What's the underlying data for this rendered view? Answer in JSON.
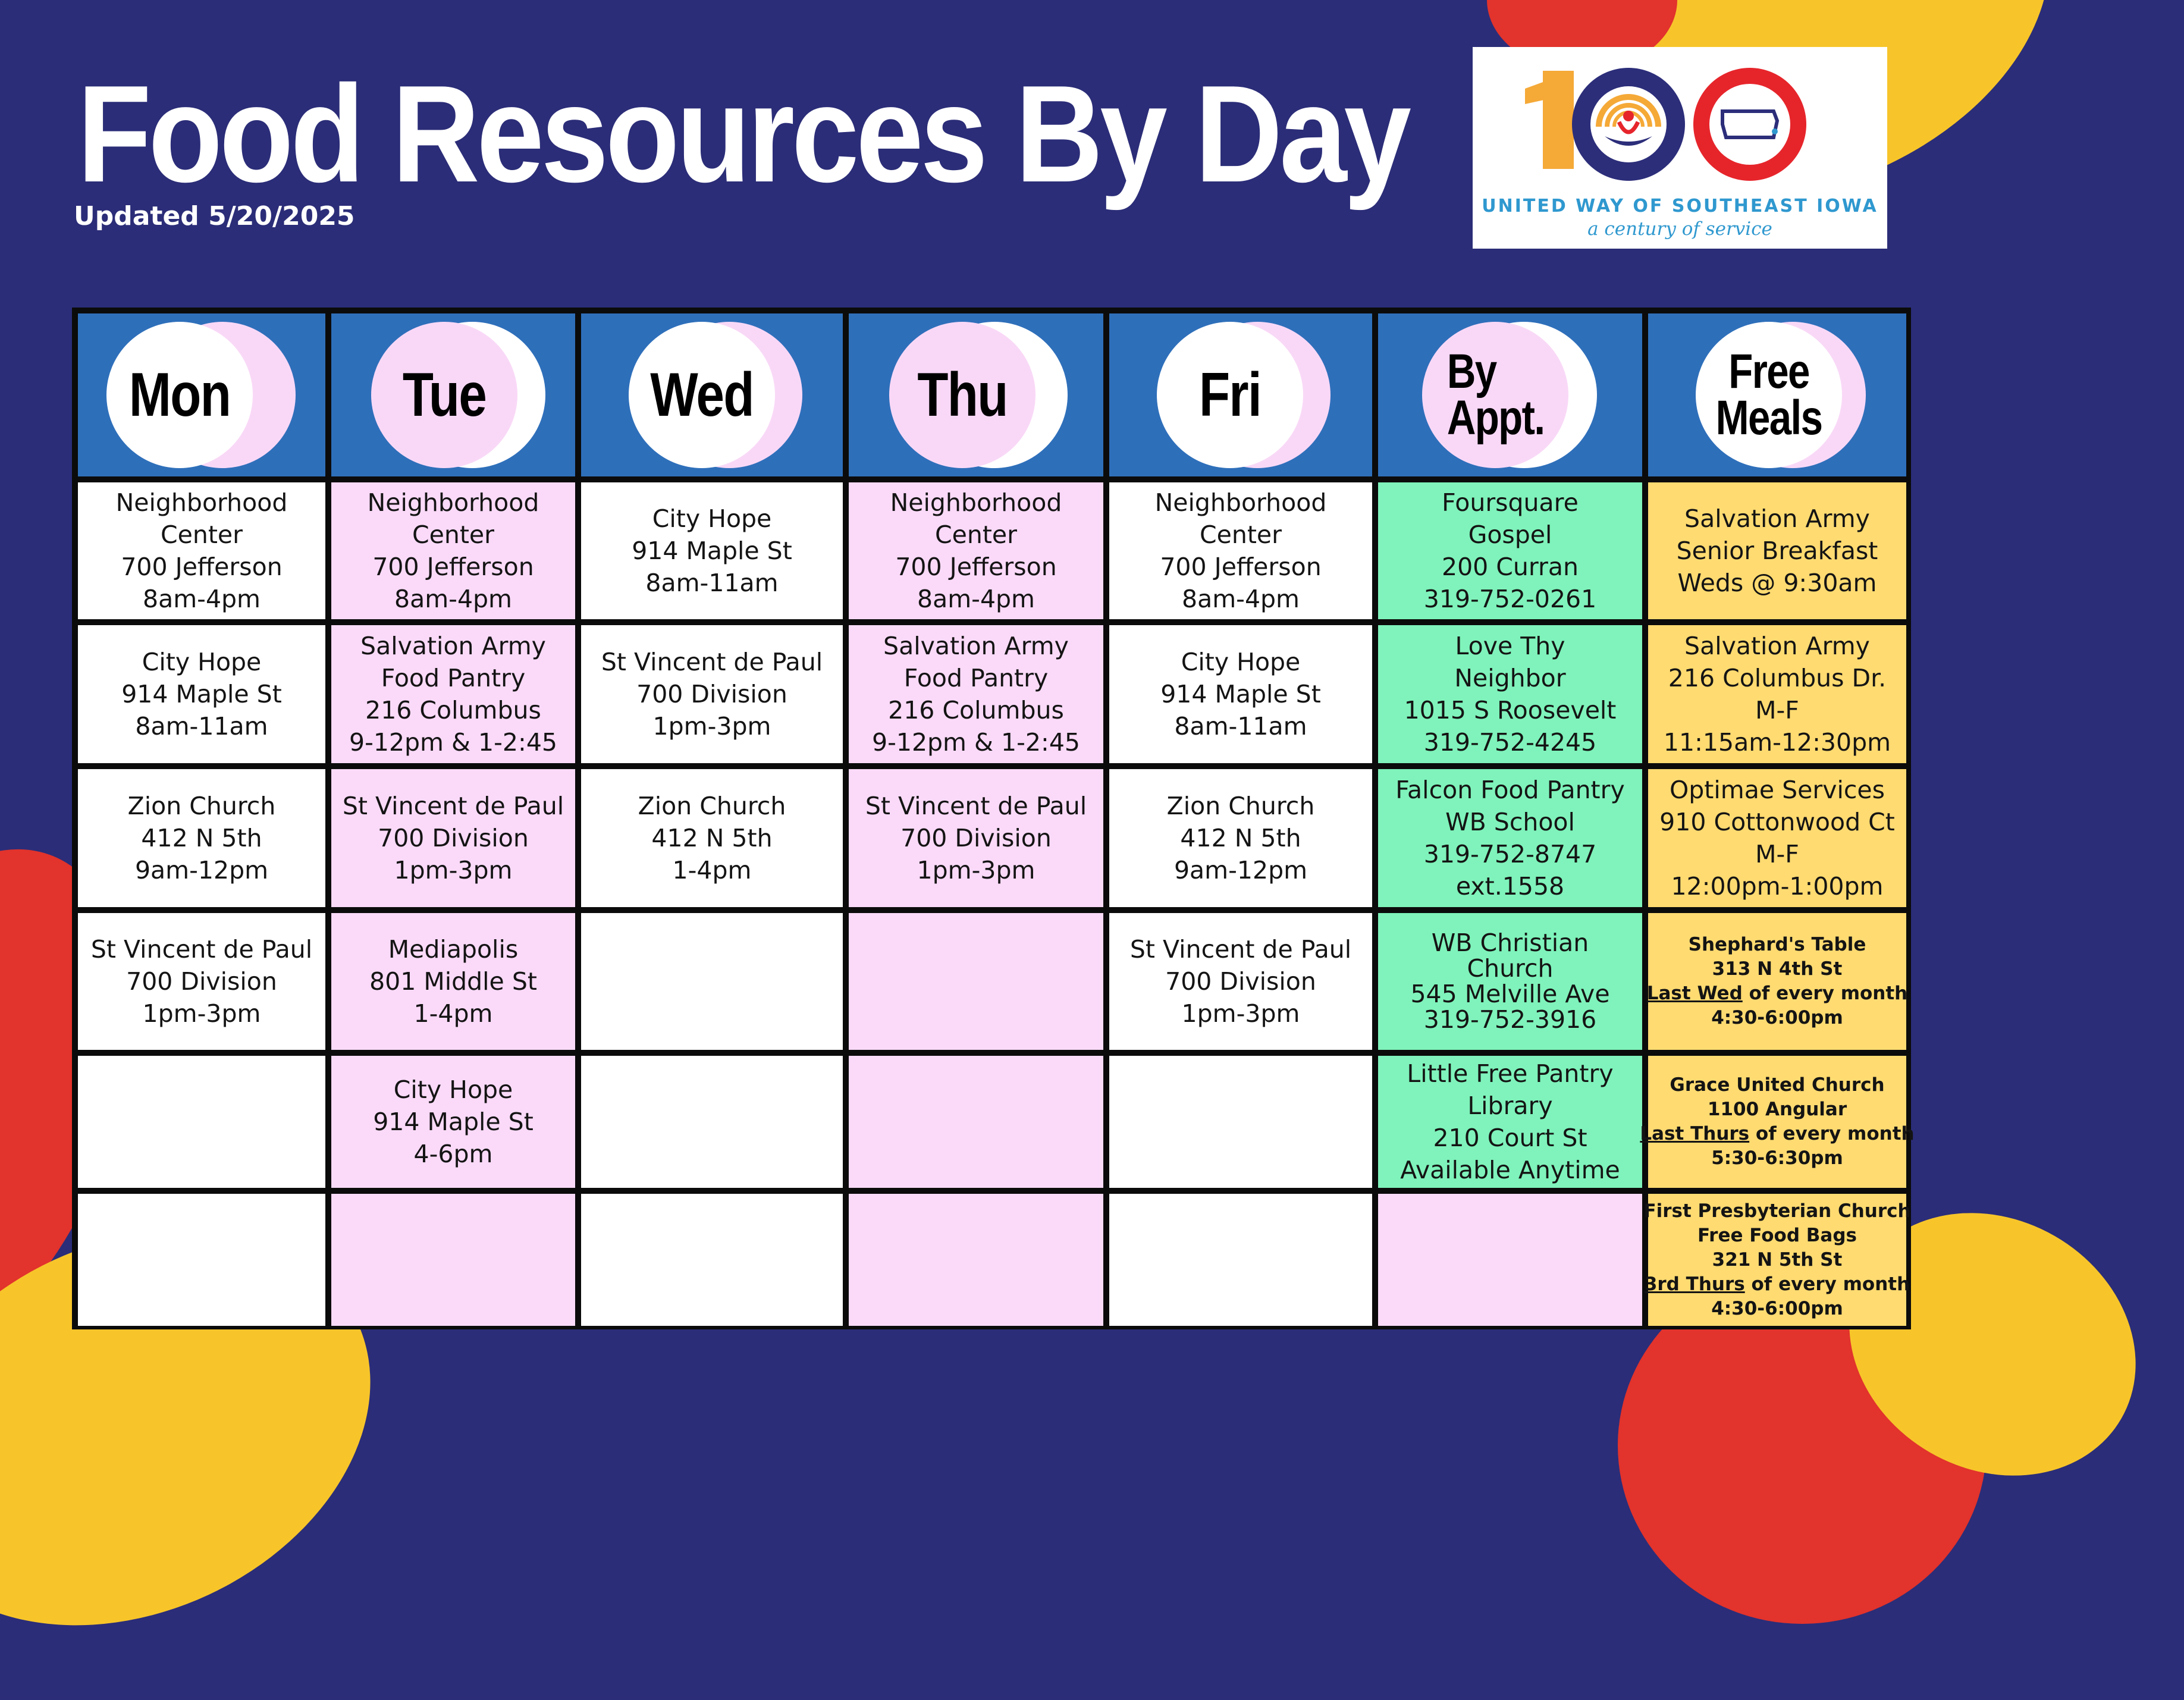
{
  "header": {
    "title": "Food Resources By Day",
    "updated": "Updated 5/20/2025"
  },
  "logo": {
    "number": "100",
    "name": "UNITED WAY OF SOUTHEAST IOWA",
    "tagline": "a century of service"
  },
  "columns": {
    "mon": "Mon",
    "tue": "Tue",
    "wed": "Wed",
    "thu": "Thu",
    "fri": "Fri",
    "appt_line1": "By",
    "appt_line2": "Appt.",
    "meals_line1": "Free",
    "meals_line2": "Meals"
  },
  "cells": {
    "mon_1": [
      "Neighborhood",
      "Center",
      "700 Jefferson",
      "8am-4pm"
    ],
    "mon_2": [
      "City Hope",
      "914 Maple St",
      "8am-11am"
    ],
    "mon_3": [
      "Zion Church",
      "412 N 5th",
      "9am-12pm"
    ],
    "mon_4": [
      "St Vincent de Paul",
      "700 Division",
      "1pm-3pm"
    ],
    "tue_1": [
      "Neighborhood",
      "Center",
      "700 Jefferson",
      "8am-4pm"
    ],
    "tue_2": [
      "Salvation Army",
      "Food Pantry",
      "216 Columbus",
      "9-12pm & 1-2:45"
    ],
    "tue_3": [
      "St Vincent de Paul",
      "700 Division",
      "1pm-3pm"
    ],
    "tue_4": [
      "Mediapolis",
      "801 Middle St",
      "1-4pm"
    ],
    "tue_5": [
      "City Hope",
      "914 Maple St",
      "4-6pm"
    ],
    "wed_1": [
      "City Hope",
      "914 Maple St",
      "8am-11am"
    ],
    "wed_2": [
      "St Vincent de Paul",
      "700 Division",
      "1pm-3pm"
    ],
    "wed_3": [
      "Zion Church",
      "412 N 5th",
      "1-4pm"
    ],
    "thu_1": [
      "Neighborhood",
      "Center",
      "700 Jefferson",
      "8am-4pm"
    ],
    "thu_2": [
      "Salvation Army",
      "Food Pantry",
      "216 Columbus",
      "9-12pm & 1-2:45"
    ],
    "thu_3": [
      "St Vincent de Paul",
      "700 Division",
      "1pm-3pm"
    ],
    "fri_1": [
      "Neighborhood",
      "Center",
      "700 Jefferson",
      "8am-4pm"
    ],
    "fri_2": [
      "City Hope",
      "914 Maple St",
      "8am-11am"
    ],
    "fri_3": [
      "Zion Church",
      "412 N 5th",
      "9am-12pm"
    ],
    "fri_4": [
      "St Vincent de Paul",
      "700 Division",
      "1pm-3pm"
    ],
    "appt_1": [
      "Foursquare",
      "Gospel",
      "200 Curran",
      "319-752-0261"
    ],
    "appt_2": [
      "Love Thy",
      "Neighbor",
      "1015 S Roosevelt",
      "319-752-4245"
    ],
    "appt_3": [
      "Falcon Food Pantry",
      "WB School",
      "319-752-8747",
      "ext.1558"
    ],
    "appt_4": [
      "WB Christian",
      "Church",
      "545 Melville Ave",
      "319-752-3916"
    ],
    "appt_5": [
      "Little Free Pantry",
      "Library",
      "210 Court St",
      "Available Anytime"
    ],
    "meals_1": [
      "Salvation Army",
      "Senior Breakfast",
      "Weds @ 9:30am"
    ],
    "meals_2": [
      "Salvation Army",
      "216 Columbus Dr.",
      "M-F",
      "11:15am-12:30pm"
    ],
    "meals_3": [
      "Optimae Services",
      "910 Cottonwood Ct",
      "M-F",
      "12:00pm-1:00pm"
    ],
    "meals_4": {
      "name": "Shephard's Table",
      "address": "313 N 4th St",
      "when_underlined": "Last Wed",
      "when_rest": " of every month",
      "time": "4:30-6:00pm"
    },
    "meals_5": {
      "name": "Grace United Church",
      "address": "1100 Angular",
      "when_underlined": "Last Thurs",
      "when_rest": " of every month",
      "time": "5:30-6:30pm"
    },
    "meals_6": {
      "name": "First Presbyterian Church",
      "note": "Free Food Bags",
      "address": "321 N 5th St",
      "when_underlined": "3rd Thurs",
      "when_rest": " of every month",
      "time": "4:30-6:00pm"
    }
  },
  "colors": {
    "background": "#2b2d78",
    "header_blue": "#2e6fba",
    "pink": "#fadaf8",
    "green": "#7ff3bb",
    "yellow": "#ffdb71",
    "red_blob": "#e2332c",
    "yellow_blob": "#f7c52a",
    "logo_orange": "#f5a937",
    "logo_red": "#e6252b",
    "logo_navy": "#2c2e7a"
  }
}
